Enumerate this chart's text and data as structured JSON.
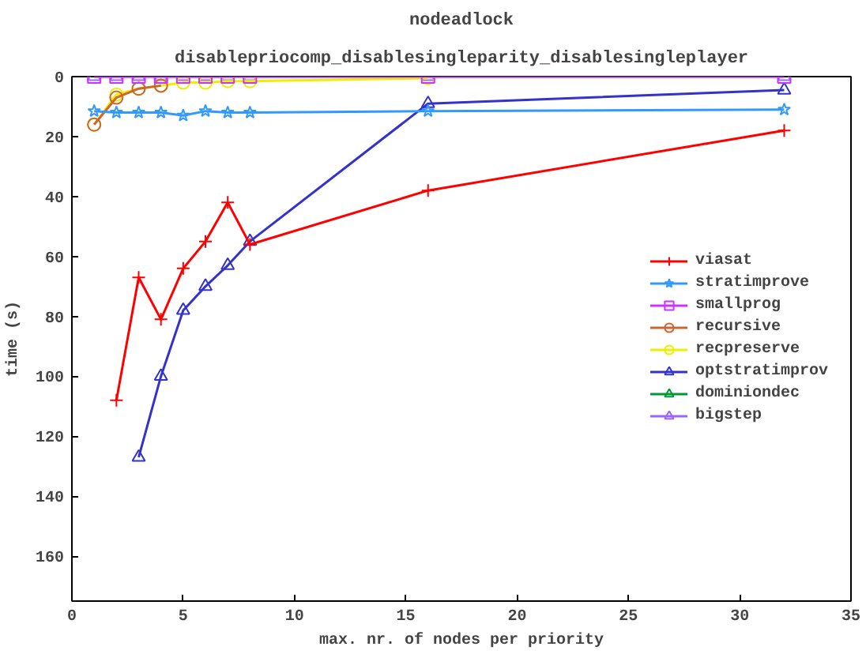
{
  "chart_data": {
    "type": "line",
    "title": "nodeadlock",
    "subtitle": "disablepriocomp_disablesingleparity_disablesingleplayer",
    "xlabel": "max. nr. of nodes per priority",
    "ylabel": "time (s)",
    "xlim": [
      0,
      35
    ],
    "xticks": [
      0,
      5,
      10,
      15,
      20,
      25,
      30,
      35
    ],
    "ylim": [
      175,
      0
    ],
    "yticks": [
      0,
      20,
      40,
      60,
      80,
      100,
      120,
      140,
      160
    ],
    "grid": false,
    "legend": "right",
    "series": [
      {
        "name": "viasat",
        "color": "#ff0000",
        "marker": "cross",
        "x": [
          2,
          3,
          4,
          5,
          6,
          7,
          8,
          16,
          32
        ],
        "values": [
          108,
          67,
          81,
          64,
          55,
          42,
          56,
          38,
          18
        ]
      },
      {
        "name": "stratimprove",
        "color": "#3399ff",
        "marker": "star",
        "x": [
          1,
          2,
          3,
          4,
          5,
          6,
          7,
          8,
          16,
          32
        ],
        "values": [
          11.5,
          12,
          12,
          12,
          13,
          11.5,
          12,
          12,
          11.5,
          11
        ]
      },
      {
        "name": "smallprog",
        "color": "#cc33ff",
        "marker": "square",
        "x": [
          1,
          2,
          3,
          4,
          5,
          6,
          7,
          8,
          16,
          32
        ],
        "values": [
          0,
          0,
          0,
          0,
          0,
          0,
          0,
          0,
          0,
          0
        ]
      },
      {
        "name": "recursive",
        "color": "#cc6633",
        "marker": "circle",
        "x": [
          1,
          2,
          3,
          4
        ],
        "values": [
          16,
          7,
          4,
          3
        ]
      },
      {
        "name": "recpreserve",
        "color": "#eeee00",
        "marker": "circle",
        "x": [
          1,
          2,
          3,
          4,
          5,
          6,
          7,
          8,
          16
        ],
        "values": [
          16,
          6,
          4,
          3,
          2,
          2,
          1.5,
          1.5,
          0.5
        ]
      },
      {
        "name": "optstratimprov",
        "color": "#3333cc",
        "marker": "triangle",
        "x": [
          3,
          4,
          5,
          6,
          7,
          8,
          16,
          32
        ],
        "values": [
          127,
          100,
          78,
          70,
          63,
          55,
          9,
          4.5
        ]
      },
      {
        "name": "dominiondec",
        "color": "#009933",
        "marker": "triangle"
      },
      {
        "name": "bigstep",
        "color": "#9966ff",
        "marker": "triangle",
        "x": [
          1,
          2,
          3,
          4,
          5,
          6,
          7,
          8,
          16,
          32
        ],
        "values": [
          0,
          0,
          0,
          0,
          0,
          0,
          0,
          0,
          0,
          0
        ]
      }
    ]
  }
}
